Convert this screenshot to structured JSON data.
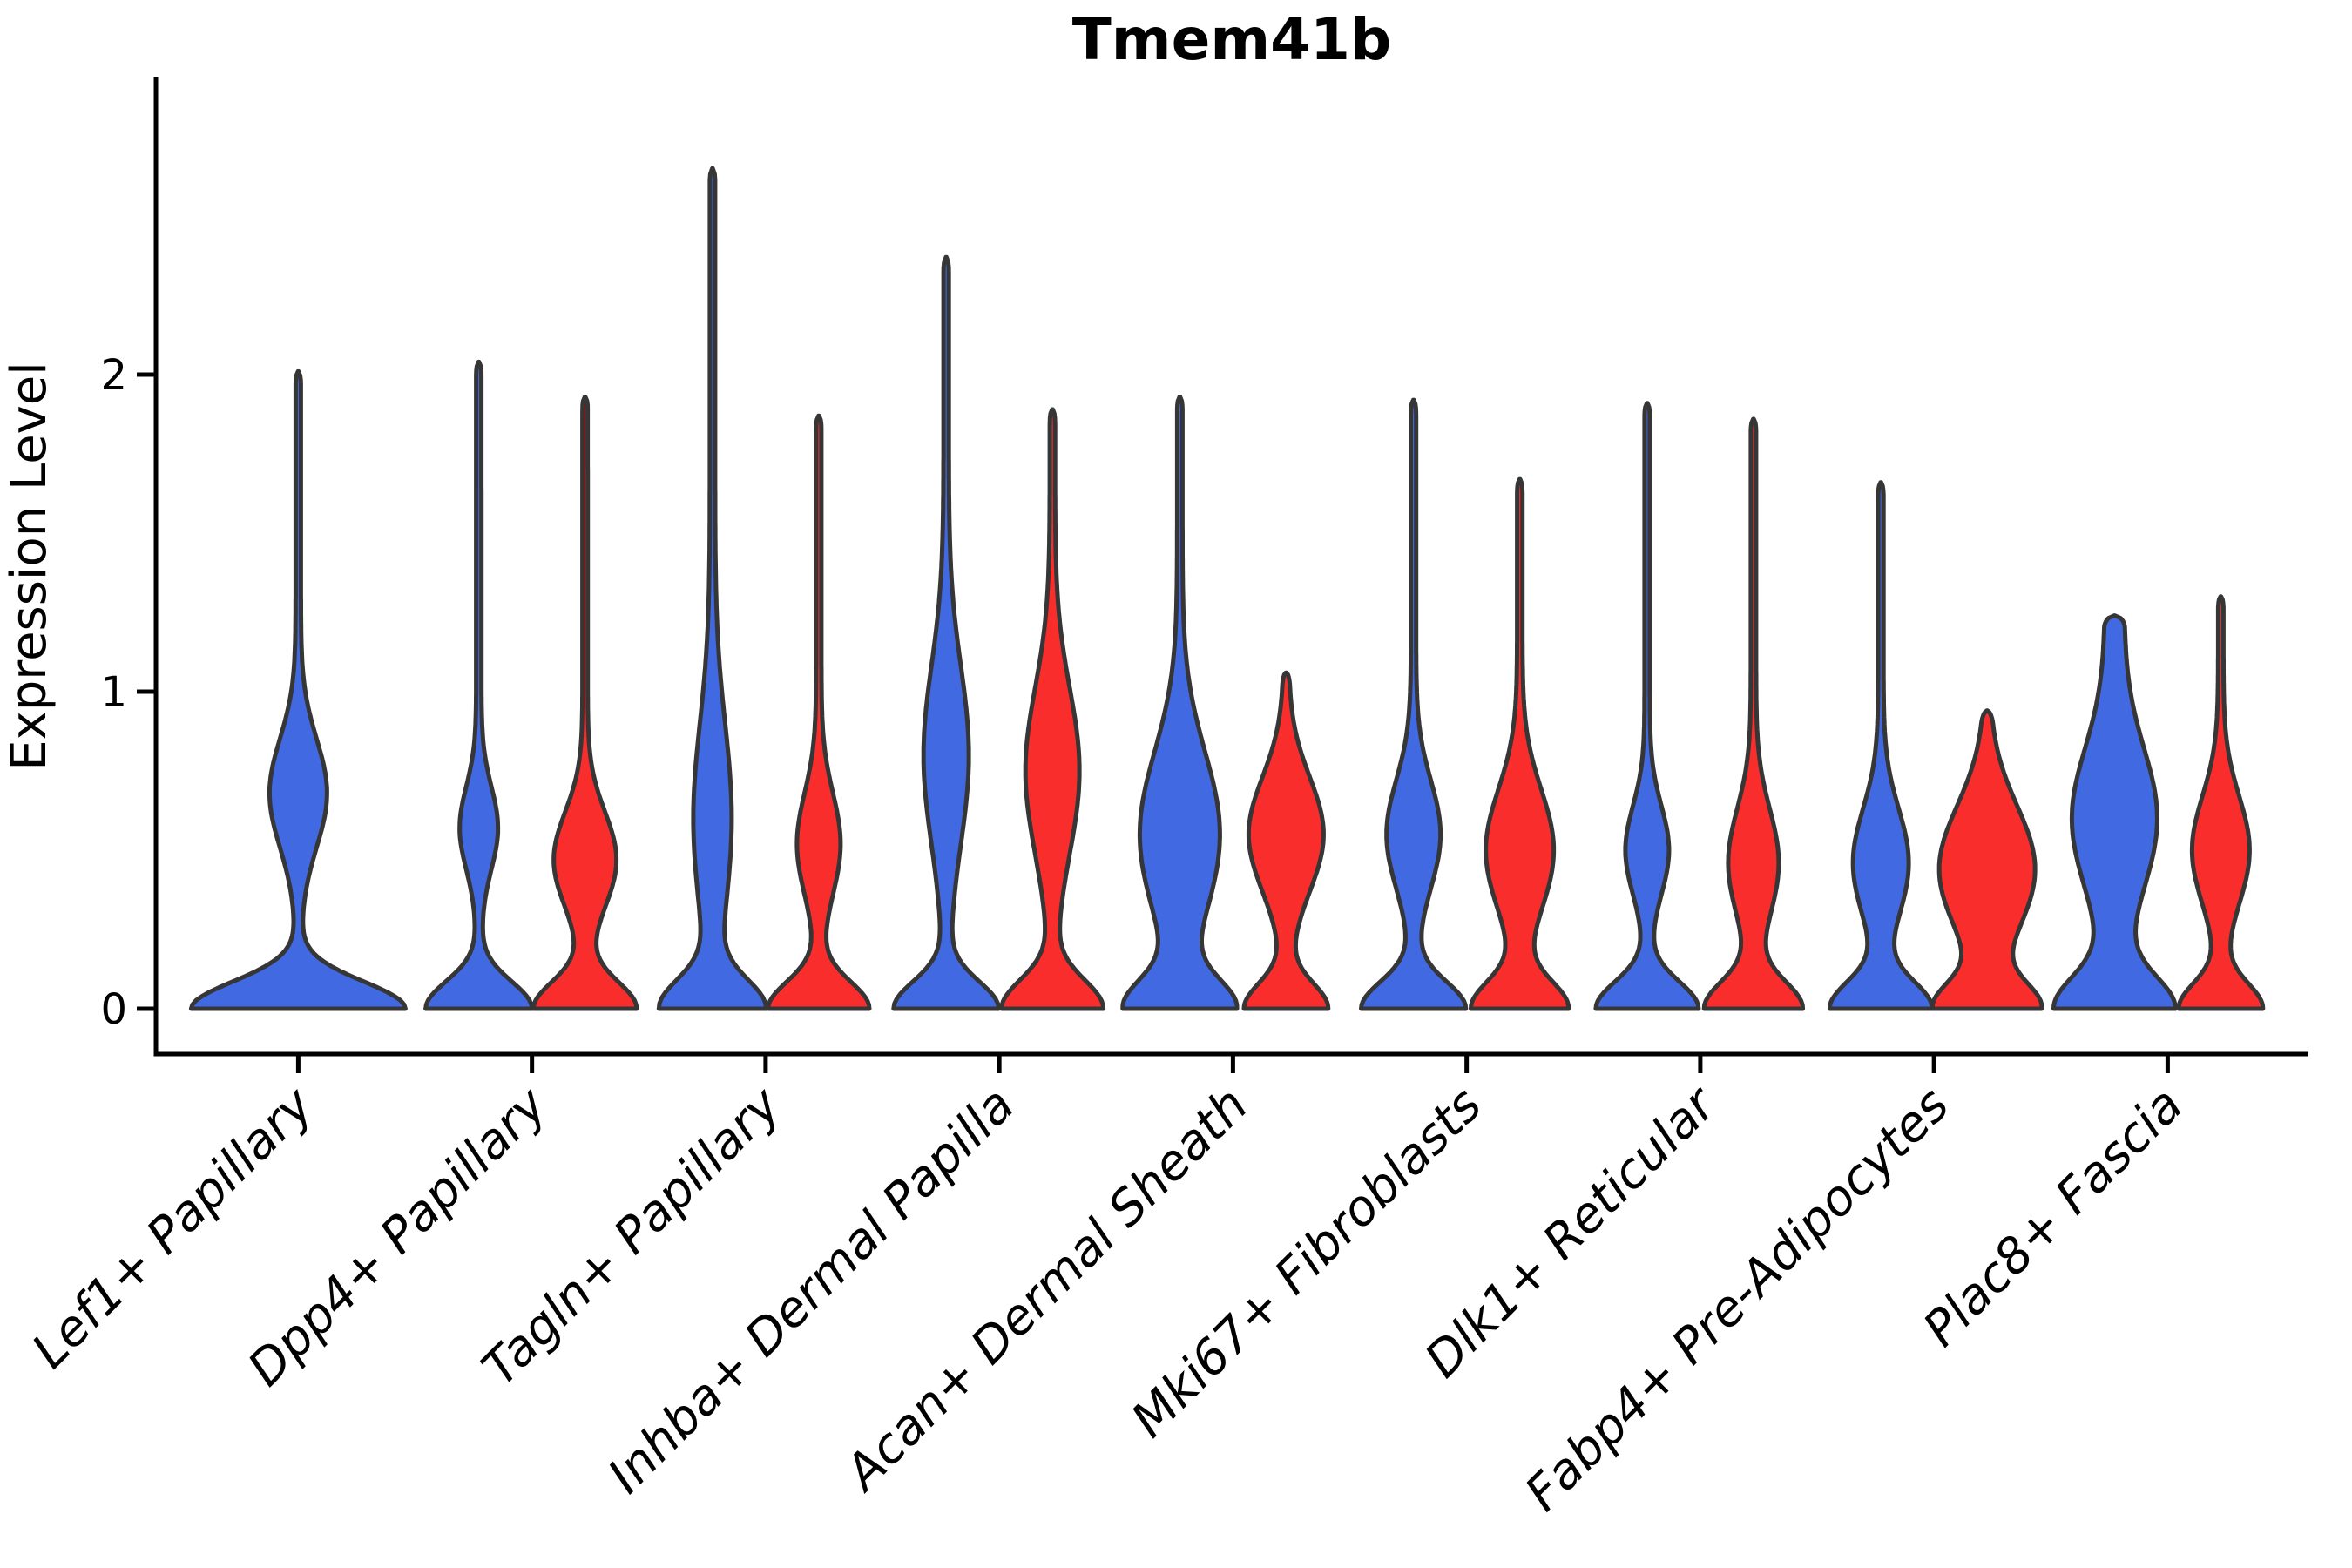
{
  "title": "Tmem41b",
  "axes": {
    "ylabel": "Expression Level",
    "yticks": [
      "0",
      "1",
      "2"
    ]
  },
  "colors": {
    "blue_fill": "#4169E1",
    "red_fill": "#FA2D2D",
    "violin_outline": "#363636",
    "axis_color": "#000000"
  },
  "chart_data": {
    "type": "violin",
    "title": "Tmem41b",
    "ylabel": "Expression Level",
    "ylim": [
      0,
      2.75
    ],
    "yticks": [
      0,
      1,
      2
    ],
    "legend": "none",
    "grid": false,
    "categories": [
      "Lef1+ Papillary",
      "Dpp4+ Papillary",
      "Tagln+ Papillary",
      "Inhba+ Dermal Papilla",
      "Acan+ Dermal Sheath",
      "Mki67+ Fibroblasts",
      "Dlk1+ Reticular",
      "Fabp4+ Pre-Adipocytes",
      "Plac8+ Fascia"
    ],
    "series_note": "each category shows a blue violin and a red violin; Lef1+ Papillary has a single blue violin only; all violins sit on a flat base at expression 0 with a long thin tail to their maximum",
    "violins": [
      {
        "category_index": 0,
        "category": "Lef1+ Papillary",
        "split": "blue",
        "max_expression": 2.01,
        "base_halfwidth": 120,
        "base_sigma": 0.085,
        "bulge_center": 0.68,
        "bulge_sigma": 0.17,
        "bulge_halfwidth": 30,
        "tail_halfwidth": 3
      },
      {
        "category_index": 1,
        "category": "Dpp4+ Papillary",
        "split": "blue",
        "max_expression": 2.04,
        "base_halfwidth": 58,
        "base_sigma": 0.085,
        "bulge_center": 0.57,
        "bulge_sigma": 0.13,
        "bulge_halfwidth": 19,
        "tail_halfwidth": 3
      },
      {
        "category_index": 1,
        "category": "Dpp4+ Papillary",
        "split": "red",
        "max_expression": 1.93,
        "base_halfwidth": 56,
        "base_sigma": 0.085,
        "bulge_center": 0.47,
        "bulge_sigma": 0.15,
        "bulge_halfwidth": 33,
        "tail_halfwidth": 3
      },
      {
        "category_index": 2,
        "category": "Tagln+ Papillary",
        "split": "blue",
        "max_expression": 2.65,
        "base_halfwidth": 56,
        "base_sigma": 0.09,
        "bulge_center": 0.6,
        "bulge_sigma": 0.3,
        "bulge_halfwidth": 19,
        "tail_halfwidth": 3
      },
      {
        "category_index": 2,
        "category": "Tagln+ Papillary",
        "split": "red",
        "max_expression": 1.87,
        "base_halfwidth": 55,
        "base_sigma": 0.085,
        "bulge_center": 0.52,
        "bulge_sigma": 0.16,
        "bulge_halfwidth": 22,
        "tail_halfwidth": 3
      },
      {
        "category_index": 3,
        "category": "Inhba+ Dermal Papilla",
        "split": "blue",
        "max_expression": 2.37,
        "base_halfwidth": 57,
        "base_sigma": 0.085,
        "bulge_center": 0.8,
        "bulge_sigma": 0.28,
        "bulge_halfwidth": 23,
        "tail_halfwidth": 3
      },
      {
        "category_index": 3,
        "category": "Inhba+ Dermal Papilla",
        "split": "red",
        "max_expression": 1.89,
        "base_halfwidth": 55,
        "base_sigma": 0.09,
        "bulge_center": 0.75,
        "bulge_sigma": 0.26,
        "bulge_halfwidth": 28,
        "tail_halfwidth": 3
      },
      {
        "category_index": 4,
        "category": "Acan+ Dermal Sheath",
        "split": "blue",
        "max_expression": 1.93,
        "base_halfwidth": 58,
        "base_sigma": 0.09,
        "bulge_center": 0.55,
        "bulge_sigma": 0.26,
        "bulge_halfwidth": 43,
        "tail_halfwidth": 3
      },
      {
        "category_index": 4,
        "category": "Acan+ Dermal Sheath",
        "split": "red",
        "max_expression": 1.06,
        "base_halfwidth": 45,
        "base_sigma": 0.08,
        "bulge_center": 0.55,
        "bulge_sigma": 0.18,
        "bulge_halfwidth": 40,
        "tail_halfwidth": 3
      },
      {
        "category_index": 5,
        "category": "Mki67+ Fibroblasts",
        "split": "blue",
        "max_expression": 1.92,
        "base_halfwidth": 57,
        "base_sigma": 0.085,
        "bulge_center": 0.55,
        "bulge_sigma": 0.17,
        "bulge_halfwidth": 28,
        "tail_halfwidth": 3
      },
      {
        "category_index": 5,
        "category": "Mki67+ Fibroblasts",
        "split": "red",
        "max_expression": 1.67,
        "base_halfwidth": 52,
        "base_sigma": 0.085,
        "bulge_center": 0.5,
        "bulge_sigma": 0.19,
        "bulge_halfwidth": 36,
        "tail_halfwidth": 3
      },
      {
        "category_index": 6,
        "category": "Dlk1+ Reticular",
        "split": "blue",
        "max_expression": 1.91,
        "base_halfwidth": 56,
        "base_sigma": 0.085,
        "bulge_center": 0.5,
        "bulge_sigma": 0.14,
        "bulge_halfwidth": 22,
        "tail_halfwidth": 3
      },
      {
        "category_index": 6,
        "category": "Dlk1+ Reticular",
        "split": "red",
        "max_expression": 1.86,
        "base_halfwidth": 53,
        "base_sigma": 0.085,
        "bulge_center": 0.46,
        "bulge_sigma": 0.17,
        "bulge_halfwidth": 26,
        "tail_halfwidth": 3
      },
      {
        "category_index": 7,
        "category": "Fabp4+ Pre-Adipocytes",
        "split": "blue",
        "max_expression": 1.66,
        "base_halfwidth": 55,
        "base_sigma": 0.085,
        "bulge_center": 0.46,
        "bulge_sigma": 0.17,
        "bulge_halfwidth": 29,
        "tail_halfwidth": 3
      },
      {
        "category_index": 7,
        "category": "Fabp4+ Pre-Adipocytes",
        "split": "red",
        "max_expression": 0.94,
        "base_halfwidth": 55,
        "base_sigma": 0.08,
        "bulge_center": 0.44,
        "bulge_sigma": 0.2,
        "bulge_halfwidth": 52,
        "tail_halfwidth": 3
      },
      {
        "category_index": 8,
        "category": "Plac8+ Fascia",
        "split": "blue",
        "max_expression": 1.24,
        "base_halfwidth": 58,
        "base_sigma": 0.1,
        "bulge_center": 0.6,
        "bulge_sigma": 0.22,
        "bulge_halfwidth": 38,
        "tail_halfwidth": 11
      },
      {
        "category_index": 8,
        "category": "Plac8+ Fascia",
        "split": "red",
        "max_expression": 1.3,
        "base_halfwidth": 45,
        "base_sigma": 0.08,
        "bulge_center": 0.5,
        "bulge_sigma": 0.17,
        "bulge_halfwidth": 30,
        "tail_halfwidth": 3
      }
    ]
  }
}
